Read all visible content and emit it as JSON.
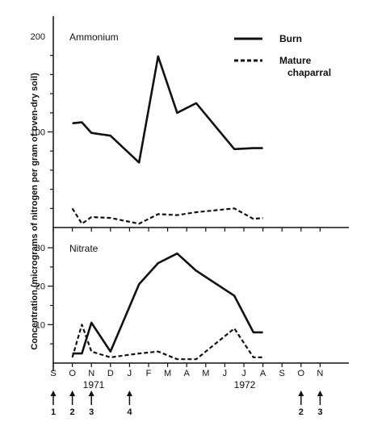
{
  "chart_data": [
    {
      "type": "line",
      "title": "Ammonium",
      "ylabel": "Concentration (micrograms of nitrogen per gram of oven-dry soil)",
      "ylim": [
        0,
        200
      ],
      "yticks": [
        100,
        200
      ],
      "x_months": [
        "S",
        "O",
        "N",
        "D",
        "J",
        "F",
        "M",
        "A",
        "M",
        "J",
        "J",
        "A",
        "S",
        "O",
        "N"
      ],
      "years": [
        "1971",
        "1972"
      ],
      "series": [
        {
          "name": "Burn",
          "style": "solid",
          "x": [
            1.0,
            1.5,
            2.0,
            3.0,
            4.5,
            5.5,
            6.5,
            7.5,
            9.5,
            10.5,
            11.0
          ],
          "y": [
            109,
            110,
            99,
            96,
            68,
            179,
            120,
            130,
            82,
            83,
            83
          ]
        },
        {
          "name": "Mature chaparral",
          "style": "dashed",
          "x": [
            1.0,
            1.5,
            2.0,
            3.0,
            4.5,
            5.5,
            6.5,
            7.5,
            9.5,
            10.5,
            11.0
          ],
          "y": [
            20,
            4,
            11,
            10,
            4,
            14,
            13,
            16,
            20,
            9,
            10
          ]
        }
      ],
      "legend": {
        "position": "top-right"
      }
    },
    {
      "type": "line",
      "title": "Nitrate",
      "ylim": [
        0,
        34
      ],
      "yticks": [
        10,
        20,
        30
      ],
      "x_months": [
        "S",
        "O",
        "N",
        "D",
        "J",
        "F",
        "M",
        "A",
        "M",
        "J",
        "J",
        "A",
        "S",
        "O",
        "N"
      ],
      "series": [
        {
          "name": "Burn",
          "style": "solid",
          "x": [
            1.0,
            1.5,
            2.0,
            3.0,
            4.5,
            5.5,
            6.5,
            7.5,
            9.5,
            10.5,
            11.0
          ],
          "y": [
            2.5,
            2.5,
            10.5,
            3.0,
            20.5,
            26,
            28.5,
            24,
            17.5,
            8,
            8
          ]
        },
        {
          "name": "Mature chaparral",
          "style": "dashed",
          "x": [
            1.0,
            1.5,
            2.0,
            3.0,
            4.5,
            5.5,
            6.5,
            7.5,
            9.5,
            10.5,
            11.0
          ],
          "y": [
            1.5,
            10,
            3,
            1.5,
            2.5,
            3,
            1,
            1,
            9,
            1.5,
            1.5
          ]
        }
      ]
    }
  ],
  "markers": [
    {
      "month": "S",
      "label": "1"
    },
    {
      "month": "O",
      "label": "2"
    },
    {
      "month": "N",
      "label": "3"
    },
    {
      "month": "J",
      "label": "4"
    },
    {
      "month": "O",
      "label": "2"
    },
    {
      "month": "N",
      "label": "3"
    }
  ],
  "colors": {
    "line": "#111111",
    "background": "#ffffff"
  }
}
